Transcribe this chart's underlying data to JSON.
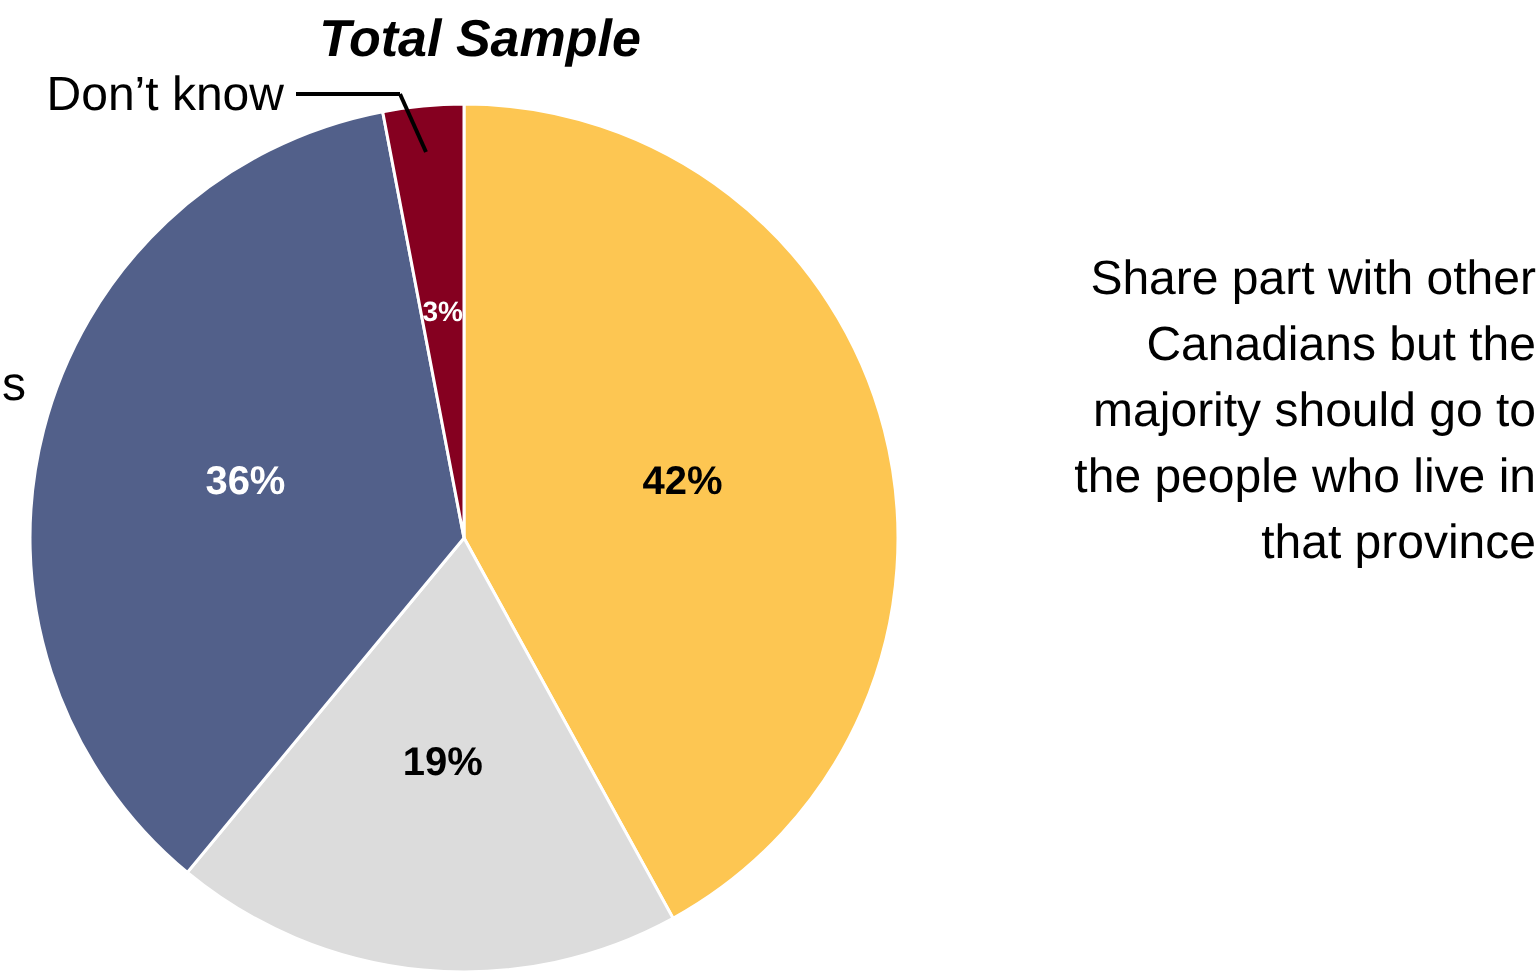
{
  "chart_data": {
    "type": "pie",
    "title": "Total Sample",
    "categories": [
      "Share part with other Canadians but the majority should go to the people who live in that province",
      null,
      "s",
      "Don’t know"
    ],
    "values": [
      42,
      19,
      36,
      3
    ],
    "colors": [
      "#fdc652",
      "#dcdcdc",
      "#52608a",
      "#850020"
    ],
    "value_labels": [
      "42%",
      "19%",
      "36%",
      "3%"
    ]
  }
}
